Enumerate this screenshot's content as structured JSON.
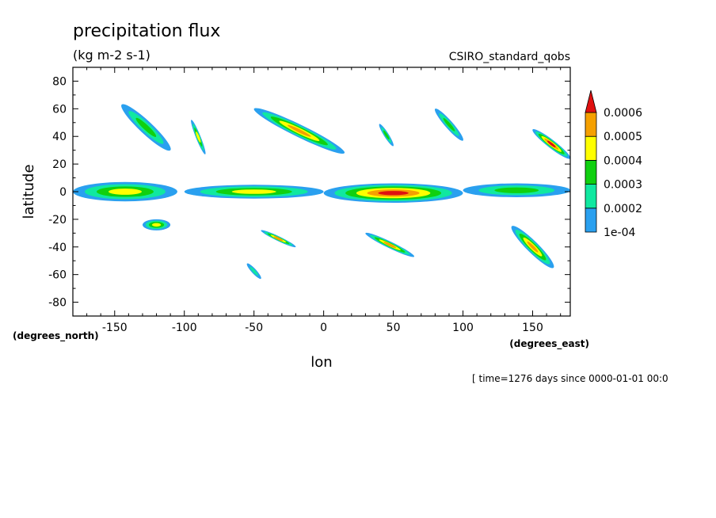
{
  "chart_data": {
    "type": "heatmap",
    "title": "precipitation flux",
    "units": "(kg m-2 s-1)",
    "source_label": "CSIRO_standard_qobs",
    "xlabel": "lon",
    "ylabel": "latitude",
    "x_units": "(degrees_east)",
    "y_units": "(degrees_north)",
    "time_note": "[ time=1276 days since 0000-01-01 00:0",
    "xlim": [
      -180,
      177
    ],
    "ylim": [
      -90,
      90
    ],
    "x_ticks": [
      -150,
      -100,
      -50,
      0,
      50,
      100,
      150
    ],
    "y_ticks": [
      80,
      60,
      40,
      20,
      0,
      -20,
      -40,
      -60,
      -80
    ],
    "levels": [
      0.0001,
      0.0002,
      0.0003,
      0.0004,
      0.0005,
      0.0006
    ],
    "level_labels": [
      "1e-04",
      "0.0002",
      "0.0003",
      "0.0004",
      "0.0005",
      "0.0006"
    ],
    "level_colors": [
      "#2aa0ef",
      "#10e8a0",
      "#10d010",
      "#ffff00",
      "#f5a000",
      "#e01010"
    ],
    "features": [
      {
        "name": "equatorial-band-west",
        "lon": [
          -180,
          -105
        ],
        "lat": [
          -7,
          7
        ],
        "peak": 0.0004
      },
      {
        "name": "equatorial-band-central",
        "lon": [
          -100,
          0
        ],
        "lat": [
          -5,
          5
        ],
        "peak": 0.0004
      },
      {
        "name": "equatorial-band-east",
        "lon": [
          0,
          100
        ],
        "lat": [
          -8,
          6
        ],
        "peak": 0.0006
      },
      {
        "name": "equatorial-band-far-east",
        "lon": [
          100,
          177
        ],
        "lat": [
          -4,
          6
        ],
        "peak": 0.0003
      },
      {
        "name": "pacific-storm-track-nw",
        "lon": [
          -145,
          -110
        ],
        "lat": [
          30,
          63
        ],
        "peak": 0.0003
      },
      {
        "name": "north-america-streak",
        "lon": [
          -95,
          -85
        ],
        "lat": [
          27,
          52
        ],
        "peak": 0.0004
      },
      {
        "name": "atlantic-storm-track",
        "lon": [
          -50,
          15
        ],
        "lat": [
          28,
          60
        ],
        "peak": 0.0005
      },
      {
        "name": "europe-streak",
        "lon": [
          40,
          50
        ],
        "lat": [
          33,
          49
        ],
        "peak": 0.0003
      },
      {
        "name": "asia-streak",
        "lon": [
          80,
          100
        ],
        "lat": [
          37,
          60
        ],
        "peak": 0.0003
      },
      {
        "name": "nw-pacific-cell",
        "lon": [
          150,
          177
        ],
        "lat": [
          24,
          45
        ],
        "peak": 0.0006
      },
      {
        "name": "south-pacific-cell",
        "lon": [
          -130,
          -110
        ],
        "lat": [
          -28,
          -20
        ],
        "peak": 0.0004
      },
      {
        "name": "south-atlantic-streak",
        "lon": [
          -45,
          -20
        ],
        "lat": [
          -40,
          -28
        ],
        "peak": 0.0005
      },
      {
        "name": "south-indian-streak",
        "lon": [
          30,
          65
        ],
        "lat": [
          -47,
          -30
        ],
        "peak": 0.0005
      },
      {
        "name": "spcz-streak",
        "lon": [
          135,
          165
        ],
        "lat": [
          -55,
          -25
        ],
        "peak": 0.0005
      },
      {
        "name": "southern-ocean-cell",
        "lon": [
          -55,
          -45
        ],
        "lat": [
          -63,
          -52
        ],
        "peak": 0.0002
      }
    ]
  }
}
